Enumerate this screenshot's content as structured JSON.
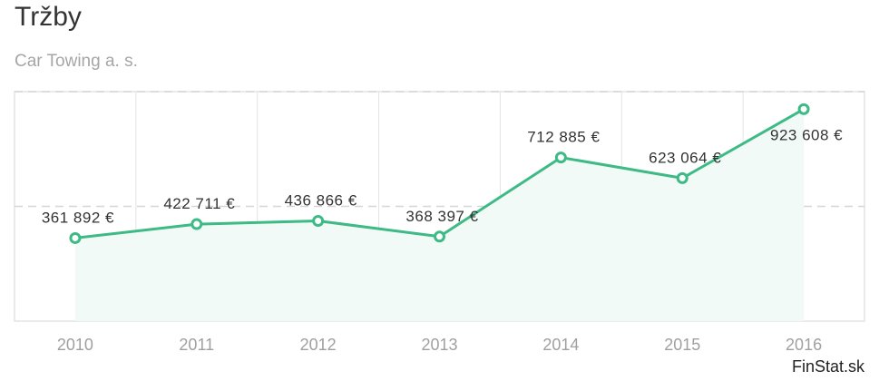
{
  "title": "Tržby",
  "subtitle": "Car Towing a. s.",
  "credit": "FinStat.sk",
  "colors": {
    "line": "#3dba85",
    "area": "#f1faf6",
    "grid": "#e3e3e3"
  },
  "chart_data": {
    "type": "area",
    "title": "Tržby",
    "subtitle": "Car Towing a. s.",
    "xlabel": "",
    "ylabel": "",
    "categories": [
      "2010",
      "2011",
      "2012",
      "2013",
      "2014",
      "2015",
      "2016"
    ],
    "series": [
      {
        "values": [
          361892,
          422711,
          436866,
          368397,
          712885,
          623064,
          923608
        ],
        "labels": [
          "361 892 €",
          "422 711 €",
          "436 866 €",
          "368 397 €",
          "712 885 €",
          "623 064 €",
          "923 608 €"
        ]
      }
    ],
    "ylim": [
      0,
      1000000
    ],
    "grid": true,
    "legend": "none"
  }
}
